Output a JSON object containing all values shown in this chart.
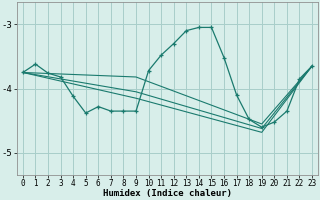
{
  "xlabel": "Humidex (Indice chaleur)",
  "xlim": [
    -0.5,
    23.5
  ],
  "ylim": [
    -5.35,
    -2.65
  ],
  "yticks": [
    -5,
    -4,
    -3
  ],
  "xticks": [
    0,
    1,
    2,
    3,
    4,
    5,
    6,
    7,
    8,
    9,
    10,
    11,
    12,
    13,
    14,
    15,
    16,
    17,
    18,
    19,
    20,
    21,
    22,
    23
  ],
  "bg_color": "#d8eeea",
  "grid_color": "#a8ceca",
  "line_color": "#1a7a6e",
  "main_x": [
    0,
    1,
    2,
    3,
    4,
    5,
    6,
    7,
    8,
    9,
    10,
    11,
    12,
    13,
    14,
    15,
    16,
    17,
    18,
    19,
    20,
    21,
    22,
    23
  ],
  "main_y": [
    -3.75,
    -3.62,
    -3.76,
    -3.82,
    -4.12,
    -4.38,
    -4.28,
    -4.35,
    -4.35,
    -4.35,
    -3.72,
    -3.48,
    -3.3,
    -3.1,
    -3.05,
    -3.05,
    -3.52,
    -4.1,
    -4.48,
    -4.6,
    -4.52,
    -4.35,
    -3.85,
    -3.65
  ],
  "straight_lines": [
    {
      "x": [
        0,
        9,
        19,
        23
      ],
      "y": [
        -3.75,
        -3.82,
        -4.55,
        -3.65
      ]
    },
    {
      "x": [
        0,
        9,
        19,
        23
      ],
      "y": [
        -3.75,
        -4.05,
        -4.62,
        -3.65
      ]
    },
    {
      "x": [
        0,
        9,
        19,
        23
      ],
      "y": [
        -3.75,
        -4.15,
        -4.68,
        -3.65
      ]
    }
  ]
}
